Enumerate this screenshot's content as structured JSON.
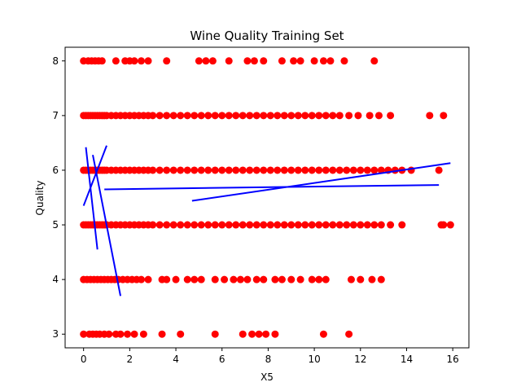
{
  "chart_data": {
    "type": "scatter",
    "title": "Wine Quality Training Set",
    "xlabel": "X5",
    "ylabel": "Quality",
    "xlim": [
      -0.8,
      16.7
    ],
    "ylim": [
      2.75,
      8.25
    ],
    "xticks": [
      0,
      2,
      4,
      6,
      8,
      10,
      12,
      14,
      16
    ],
    "yticks": [
      3,
      4,
      5,
      6,
      7,
      8
    ],
    "grid": false,
    "legend": "none",
    "point_color": "#ff0000",
    "line_color": "#0000ff",
    "series": [
      {
        "type": "scatter",
        "points": [
          {
            "x": 0.0,
            "y": 3
          },
          {
            "x": 0.25,
            "y": 3
          },
          {
            "x": 0.4,
            "y": 3
          },
          {
            "x": 0.55,
            "y": 3
          },
          {
            "x": 0.7,
            "y": 3
          },
          {
            "x": 0.9,
            "y": 3
          },
          {
            "x": 1.1,
            "y": 3
          },
          {
            "x": 1.4,
            "y": 3
          },
          {
            "x": 1.6,
            "y": 3
          },
          {
            "x": 1.9,
            "y": 3
          },
          {
            "x": 2.2,
            "y": 3
          },
          {
            "x": 2.6,
            "y": 3
          },
          {
            "x": 3.4,
            "y": 3
          },
          {
            "x": 4.2,
            "y": 3
          },
          {
            "x": 5.7,
            "y": 3
          },
          {
            "x": 6.9,
            "y": 3
          },
          {
            "x": 7.3,
            "y": 3
          },
          {
            "x": 7.6,
            "y": 3
          },
          {
            "x": 7.9,
            "y": 3
          },
          {
            "x": 8.3,
            "y": 3
          },
          {
            "x": 10.4,
            "y": 3
          },
          {
            "x": 11.5,
            "y": 3
          },
          {
            "x": 0.0,
            "y": 4
          },
          {
            "x": 0.15,
            "y": 4
          },
          {
            "x": 0.3,
            "y": 4
          },
          {
            "x": 0.45,
            "y": 4
          },
          {
            "x": 0.6,
            "y": 4
          },
          {
            "x": 0.75,
            "y": 4
          },
          {
            "x": 0.9,
            "y": 4
          },
          {
            "x": 1.05,
            "y": 4
          },
          {
            "x": 1.2,
            "y": 4
          },
          {
            "x": 1.35,
            "y": 4
          },
          {
            "x": 1.5,
            "y": 4
          },
          {
            "x": 1.7,
            "y": 4
          },
          {
            "x": 1.9,
            "y": 4
          },
          {
            "x": 2.1,
            "y": 4
          },
          {
            "x": 2.3,
            "y": 4
          },
          {
            "x": 2.5,
            "y": 4
          },
          {
            "x": 2.8,
            "y": 4
          },
          {
            "x": 3.4,
            "y": 4
          },
          {
            "x": 3.6,
            "y": 4
          },
          {
            "x": 4.0,
            "y": 4
          },
          {
            "x": 4.5,
            "y": 4
          },
          {
            "x": 4.8,
            "y": 4
          },
          {
            "x": 5.1,
            "y": 4
          },
          {
            "x": 5.7,
            "y": 4
          },
          {
            "x": 6.1,
            "y": 4
          },
          {
            "x": 6.5,
            "y": 4
          },
          {
            "x": 6.8,
            "y": 4
          },
          {
            "x": 7.1,
            "y": 4
          },
          {
            "x": 7.5,
            "y": 4
          },
          {
            "x": 7.8,
            "y": 4
          },
          {
            "x": 8.3,
            "y": 4
          },
          {
            "x": 8.6,
            "y": 4
          },
          {
            "x": 9.0,
            "y": 4
          },
          {
            "x": 9.4,
            "y": 4
          },
          {
            "x": 9.9,
            "y": 4
          },
          {
            "x": 10.2,
            "y": 4
          },
          {
            "x": 10.5,
            "y": 4
          },
          {
            "x": 11.6,
            "y": 4
          },
          {
            "x": 12.0,
            "y": 4
          },
          {
            "x": 12.5,
            "y": 4
          },
          {
            "x": 12.9,
            "y": 4
          },
          {
            "x": 0.0,
            "y": 5
          },
          {
            "x": 0.1,
            "y": 5
          },
          {
            "x": 0.2,
            "y": 5
          },
          {
            "x": 0.3,
            "y": 5
          },
          {
            "x": 0.4,
            "y": 5
          },
          {
            "x": 0.5,
            "y": 5
          },
          {
            "x": 0.6,
            "y": 5
          },
          {
            "x": 0.7,
            "y": 5
          },
          {
            "x": 0.8,
            "y": 5
          },
          {
            "x": 0.9,
            "y": 5
          },
          {
            "x": 1.0,
            "y": 5
          },
          {
            "x": 1.2,
            "y": 5
          },
          {
            "x": 1.4,
            "y": 5
          },
          {
            "x": 1.6,
            "y": 5
          },
          {
            "x": 1.8,
            "y": 5
          },
          {
            "x": 2.0,
            "y": 5
          },
          {
            "x": 2.2,
            "y": 5
          },
          {
            "x": 2.4,
            "y": 5
          },
          {
            "x": 2.6,
            "y": 5
          },
          {
            "x": 2.8,
            "y": 5
          },
          {
            "x": 3.0,
            "y": 5
          },
          {
            "x": 3.3,
            "y": 5
          },
          {
            "x": 3.6,
            "y": 5
          },
          {
            "x": 3.9,
            "y": 5
          },
          {
            "x": 4.2,
            "y": 5
          },
          {
            "x": 4.5,
            "y": 5
          },
          {
            "x": 4.8,
            "y": 5
          },
          {
            "x": 5.1,
            "y": 5
          },
          {
            "x": 5.4,
            "y": 5
          },
          {
            "x": 5.7,
            "y": 5
          },
          {
            "x": 6.0,
            "y": 5
          },
          {
            "x": 6.3,
            "y": 5
          },
          {
            "x": 6.6,
            "y": 5
          },
          {
            "x": 6.9,
            "y": 5
          },
          {
            "x": 7.2,
            "y": 5
          },
          {
            "x": 7.5,
            "y": 5
          },
          {
            "x": 7.8,
            "y": 5
          },
          {
            "x": 8.1,
            "y": 5
          },
          {
            "x": 8.4,
            "y": 5
          },
          {
            "x": 8.7,
            "y": 5
          },
          {
            "x": 9.0,
            "y": 5
          },
          {
            "x": 9.3,
            "y": 5
          },
          {
            "x": 9.6,
            "y": 5
          },
          {
            "x": 9.9,
            "y": 5
          },
          {
            "x": 10.2,
            "y": 5
          },
          {
            "x": 10.5,
            "y": 5
          },
          {
            "x": 10.8,
            "y": 5
          },
          {
            "x": 11.1,
            "y": 5
          },
          {
            "x": 11.4,
            "y": 5
          },
          {
            "x": 11.7,
            "y": 5
          },
          {
            "x": 12.0,
            "y": 5
          },
          {
            "x": 12.3,
            "y": 5
          },
          {
            "x": 12.6,
            "y": 5
          },
          {
            "x": 12.9,
            "y": 5
          },
          {
            "x": 13.3,
            "y": 5
          },
          {
            "x": 13.8,
            "y": 5
          },
          {
            "x": 15.5,
            "y": 5
          },
          {
            "x": 15.6,
            "y": 5
          },
          {
            "x": 15.9,
            "y": 5
          },
          {
            "x": 0.0,
            "y": 6
          },
          {
            "x": 0.1,
            "y": 6
          },
          {
            "x": 0.2,
            "y": 6
          },
          {
            "x": 0.3,
            "y": 6
          },
          {
            "x": 0.4,
            "y": 6
          },
          {
            "x": 0.5,
            "y": 6
          },
          {
            "x": 0.6,
            "y": 6
          },
          {
            "x": 0.7,
            "y": 6
          },
          {
            "x": 0.8,
            "y": 6
          },
          {
            "x": 0.9,
            "y": 6
          },
          {
            "x": 1.0,
            "y": 6
          },
          {
            "x": 1.2,
            "y": 6
          },
          {
            "x": 1.4,
            "y": 6
          },
          {
            "x": 1.6,
            "y": 6
          },
          {
            "x": 1.8,
            "y": 6
          },
          {
            "x": 2.0,
            "y": 6
          },
          {
            "x": 2.2,
            "y": 6
          },
          {
            "x": 2.4,
            "y": 6
          },
          {
            "x": 2.6,
            "y": 6
          },
          {
            "x": 2.8,
            "y": 6
          },
          {
            "x": 3.0,
            "y": 6
          },
          {
            "x": 3.3,
            "y": 6
          },
          {
            "x": 3.6,
            "y": 6
          },
          {
            "x": 3.9,
            "y": 6
          },
          {
            "x": 4.2,
            "y": 6
          },
          {
            "x": 4.5,
            "y": 6
          },
          {
            "x": 4.8,
            "y": 6
          },
          {
            "x": 5.1,
            "y": 6
          },
          {
            "x": 5.4,
            "y": 6
          },
          {
            "x": 5.7,
            "y": 6
          },
          {
            "x": 6.0,
            "y": 6
          },
          {
            "x": 6.3,
            "y": 6
          },
          {
            "x": 6.6,
            "y": 6
          },
          {
            "x": 6.9,
            "y": 6
          },
          {
            "x": 7.2,
            "y": 6
          },
          {
            "x": 7.5,
            "y": 6
          },
          {
            "x": 7.8,
            "y": 6
          },
          {
            "x": 8.1,
            "y": 6
          },
          {
            "x": 8.4,
            "y": 6
          },
          {
            "x": 8.7,
            "y": 6
          },
          {
            "x": 9.0,
            "y": 6
          },
          {
            "x": 9.3,
            "y": 6
          },
          {
            "x": 9.6,
            "y": 6
          },
          {
            "x": 9.9,
            "y": 6
          },
          {
            "x": 10.2,
            "y": 6
          },
          {
            "x": 10.5,
            "y": 6
          },
          {
            "x": 10.8,
            "y": 6
          },
          {
            "x": 11.1,
            "y": 6
          },
          {
            "x": 11.4,
            "y": 6
          },
          {
            "x": 11.7,
            "y": 6
          },
          {
            "x": 12.0,
            "y": 6
          },
          {
            "x": 12.3,
            "y": 6
          },
          {
            "x": 12.6,
            "y": 6
          },
          {
            "x": 12.9,
            "y": 6
          },
          {
            "x": 13.2,
            "y": 6
          },
          {
            "x": 13.5,
            "y": 6
          },
          {
            "x": 13.8,
            "y": 6
          },
          {
            "x": 14.2,
            "y": 6
          },
          {
            "x": 15.4,
            "y": 6
          },
          {
            "x": 0.0,
            "y": 7
          },
          {
            "x": 0.1,
            "y": 7
          },
          {
            "x": 0.2,
            "y": 7
          },
          {
            "x": 0.3,
            "y": 7
          },
          {
            "x": 0.4,
            "y": 7
          },
          {
            "x": 0.5,
            "y": 7
          },
          {
            "x": 0.6,
            "y": 7
          },
          {
            "x": 0.7,
            "y": 7
          },
          {
            "x": 0.8,
            "y": 7
          },
          {
            "x": 0.9,
            "y": 7
          },
          {
            "x": 1.0,
            "y": 7
          },
          {
            "x": 1.2,
            "y": 7
          },
          {
            "x": 1.4,
            "y": 7
          },
          {
            "x": 1.6,
            "y": 7
          },
          {
            "x": 1.8,
            "y": 7
          },
          {
            "x": 2.0,
            "y": 7
          },
          {
            "x": 2.2,
            "y": 7
          },
          {
            "x": 2.4,
            "y": 7
          },
          {
            "x": 2.6,
            "y": 7
          },
          {
            "x": 2.8,
            "y": 7
          },
          {
            "x": 3.0,
            "y": 7
          },
          {
            "x": 3.3,
            "y": 7
          },
          {
            "x": 3.6,
            "y": 7
          },
          {
            "x": 3.9,
            "y": 7
          },
          {
            "x": 4.2,
            "y": 7
          },
          {
            "x": 4.5,
            "y": 7
          },
          {
            "x": 4.8,
            "y": 7
          },
          {
            "x": 5.1,
            "y": 7
          },
          {
            "x": 5.4,
            "y": 7
          },
          {
            "x": 5.7,
            "y": 7
          },
          {
            "x": 6.0,
            "y": 7
          },
          {
            "x": 6.3,
            "y": 7
          },
          {
            "x": 6.6,
            "y": 7
          },
          {
            "x": 6.9,
            "y": 7
          },
          {
            "x": 7.2,
            "y": 7
          },
          {
            "x": 7.5,
            "y": 7
          },
          {
            "x": 7.8,
            "y": 7
          },
          {
            "x": 8.1,
            "y": 7
          },
          {
            "x": 8.4,
            "y": 7
          },
          {
            "x": 8.7,
            "y": 7
          },
          {
            "x": 9.0,
            "y": 7
          },
          {
            "x": 9.3,
            "y": 7
          },
          {
            "x": 9.6,
            "y": 7
          },
          {
            "x": 9.9,
            "y": 7
          },
          {
            "x": 10.2,
            "y": 7
          },
          {
            "x": 10.5,
            "y": 7
          },
          {
            "x": 10.8,
            "y": 7
          },
          {
            "x": 11.1,
            "y": 7
          },
          {
            "x": 11.5,
            "y": 7
          },
          {
            "x": 11.9,
            "y": 7
          },
          {
            "x": 12.4,
            "y": 7
          },
          {
            "x": 12.8,
            "y": 7
          },
          {
            "x": 13.3,
            "y": 7
          },
          {
            "x": 15.0,
            "y": 7
          },
          {
            "x": 15.6,
            "y": 7
          },
          {
            "x": 0.0,
            "y": 8
          },
          {
            "x": 0.2,
            "y": 8
          },
          {
            "x": 0.35,
            "y": 8
          },
          {
            "x": 0.5,
            "y": 8
          },
          {
            "x": 0.65,
            "y": 8
          },
          {
            "x": 0.8,
            "y": 8
          },
          {
            "x": 1.4,
            "y": 8
          },
          {
            "x": 1.8,
            "y": 8
          },
          {
            "x": 2.0,
            "y": 8
          },
          {
            "x": 2.2,
            "y": 8
          },
          {
            "x": 2.5,
            "y": 8
          },
          {
            "x": 2.8,
            "y": 8
          },
          {
            "x": 3.6,
            "y": 8
          },
          {
            "x": 5.0,
            "y": 8
          },
          {
            "x": 5.3,
            "y": 8
          },
          {
            "x": 5.6,
            "y": 8
          },
          {
            "x": 6.3,
            "y": 8
          },
          {
            "x": 7.1,
            "y": 8
          },
          {
            "x": 7.4,
            "y": 8
          },
          {
            "x": 7.8,
            "y": 8
          },
          {
            "x": 8.6,
            "y": 8
          },
          {
            "x": 9.1,
            "y": 8
          },
          {
            "x": 9.4,
            "y": 8
          },
          {
            "x": 10.0,
            "y": 8
          },
          {
            "x": 10.4,
            "y": 8
          },
          {
            "x": 10.7,
            "y": 8
          },
          {
            "x": 11.3,
            "y": 8
          },
          {
            "x": 12.6,
            "y": 8
          }
        ]
      },
      {
        "type": "lines",
        "segments": [
          [
            {
              "x": 0.1,
              "y": 6.42
            },
            {
              "x": 0.6,
              "y": 4.55
            }
          ],
          [
            {
              "x": 0.4,
              "y": 6.28
            },
            {
              "x": 1.6,
              "y": 3.7
            }
          ],
          [
            {
              "x": 0.0,
              "y": 5.35
            },
            {
              "x": 1.0,
              "y": 6.45
            }
          ],
          [
            {
              "x": 0.9,
              "y": 5.65
            },
            {
              "x": 15.4,
              "y": 5.73
            }
          ],
          [
            {
              "x": 4.7,
              "y": 5.44
            },
            {
              "x": 15.9,
              "y": 6.13
            }
          ]
        ]
      }
    ]
  }
}
